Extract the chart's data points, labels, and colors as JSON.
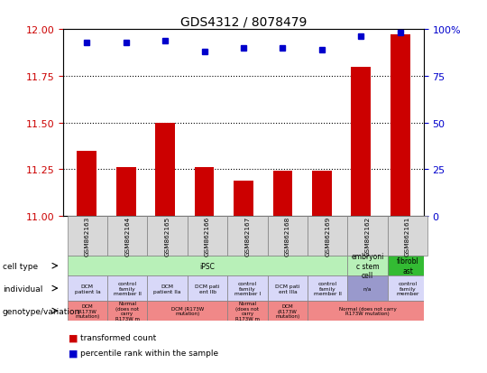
{
  "title": "GDS4312 / 8078479",
  "samples": [
    "GSM862163",
    "GSM862164",
    "GSM862165",
    "GSM862166",
    "GSM862167",
    "GSM862168",
    "GSM862169",
    "GSM862162",
    "GSM862161"
  ],
  "bar_values": [
    11.35,
    11.26,
    11.5,
    11.26,
    11.19,
    11.24,
    11.24,
    11.8,
    11.97
  ],
  "percentile_values": [
    93,
    93,
    94,
    88,
    90,
    90,
    89,
    96,
    98
  ],
  "ylim_left": [
    11,
    12
  ],
  "ylim_right": [
    0,
    100
  ],
  "yticks_left": [
    11,
    11.25,
    11.5,
    11.75,
    12
  ],
  "yticks_right": [
    0,
    25,
    50,
    75,
    100
  ],
  "bar_color": "#cc0000",
  "dot_color": "#0000cc",
  "sample_bg": "#d8d8d8",
  "cell_type_ipsc_color": "#b8f0b8",
  "cell_type_esc_color": "#b8f0b8",
  "cell_type_fibro_color": "#33bb33",
  "individual_default_color": "#d8d8f8",
  "individual_na_color": "#9999cc",
  "genotype_color": "#f08888",
  "cell_type_cells": [
    {
      "text": "iPSC",
      "span": 7,
      "color": "#b8f0b8"
    },
    {
      "text": "embryoni\nc stem\ncell",
      "span": 1,
      "color": "#b8f0b8"
    },
    {
      "text": "fibrobl\nast",
      "span": 1,
      "color": "#33bb33"
    }
  ],
  "individual_cells": [
    {
      "text": "DCM\npatient Ia",
      "span": 1,
      "color": "#d8d8f8"
    },
    {
      "text": "control\nfamily\nmember II",
      "span": 1,
      "color": "#d8d8f8"
    },
    {
      "text": "DCM\npatient IIa",
      "span": 1,
      "color": "#d8d8f8"
    },
    {
      "text": "DCM pati\nent IIb",
      "span": 1,
      "color": "#d8d8f8"
    },
    {
      "text": "control\nfamily\nmember I",
      "span": 1,
      "color": "#d8d8f8"
    },
    {
      "text": "DCM pati\nent IIIa",
      "span": 1,
      "color": "#d8d8f8"
    },
    {
      "text": "control\nfamily\nmember II",
      "span": 1,
      "color": "#d8d8f8"
    },
    {
      "text": "n/a",
      "span": 1,
      "color": "#9999cc"
    },
    {
      "text": "control\nfamily\nmember",
      "span": 1,
      "color": "#d8d8f8"
    }
  ],
  "genotype_cells": [
    {
      "text": "DCM\n(R173W\nmutation)",
      "span": 1,
      "color": "#f08888"
    },
    {
      "text": "Normal\n(does not\ncarry\nR173W m",
      "span": 1,
      "color": "#f08888"
    },
    {
      "text": "DCM (R173W\nmutation)",
      "span": 2,
      "color": "#f08888"
    },
    {
      "text": "Normal\n(does not\ncarry\nR173W m",
      "span": 1,
      "color": "#f08888"
    },
    {
      "text": "DCM\n(R173W\nmutation)",
      "span": 1,
      "color": "#f08888"
    },
    {
      "text": "Normal (does not carry\nR173W mutation)",
      "span": 3,
      "color": "#f08888"
    }
  ],
  "row_labels": [
    "cell type",
    "individual",
    "genotype/variation"
  ],
  "legend": [
    {
      "color": "#cc0000",
      "label": "transformed count"
    },
    {
      "color": "#0000cc",
      "label": "percentile rank within the sample"
    }
  ]
}
